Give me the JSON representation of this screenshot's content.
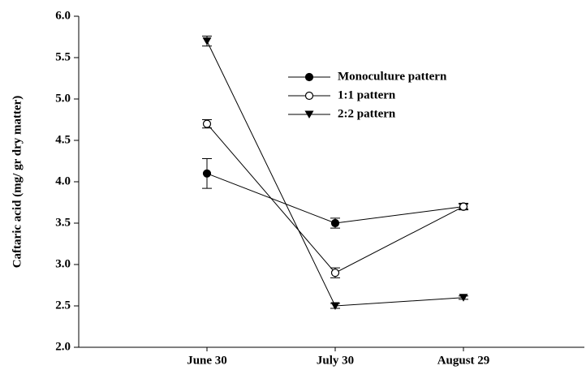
{
  "chart_data": {
    "type": "line",
    "y_label": "Caftaric acid (mg/ gr dry matter)",
    "categories": [
      "June 30",
      "July 30",
      "August 29"
    ],
    "ylim": [
      2.0,
      6.0
    ],
    "yticks": [
      {
        "value": 2,
        "label": "2.0"
      },
      2.5,
      {
        "value": 3,
        "label": "3.0"
      },
      3.5,
      {
        "value": 4,
        "label": "4.0"
      },
      4.5,
      {
        "value": 5,
        "label": "5.0"
      },
      5.5,
      {
        "value": 6,
        "label": "6.0"
      }
    ],
    "series": [
      {
        "name": "Monoculture pattern",
        "color": "#000000",
        "marker": "filled-circle",
        "values": [
          4.1,
          3.5,
          3.7
        ],
        "errors": [
          0.18,
          0.06,
          0.03
        ]
      },
      {
        "name": "1:1 pattern",
        "color": "#000000",
        "marker": "open-circle",
        "values": [
          4.7,
          2.9,
          3.7
        ],
        "errors": [
          0.05,
          0.06,
          0.04
        ]
      },
      {
        "name": "2:2 pattern",
        "color": "#000000",
        "marker": "triangle-down",
        "values": [
          5.7,
          2.5,
          2.6
        ],
        "errors": [
          0.06,
          0.03,
          0.02
        ]
      }
    ]
  }
}
